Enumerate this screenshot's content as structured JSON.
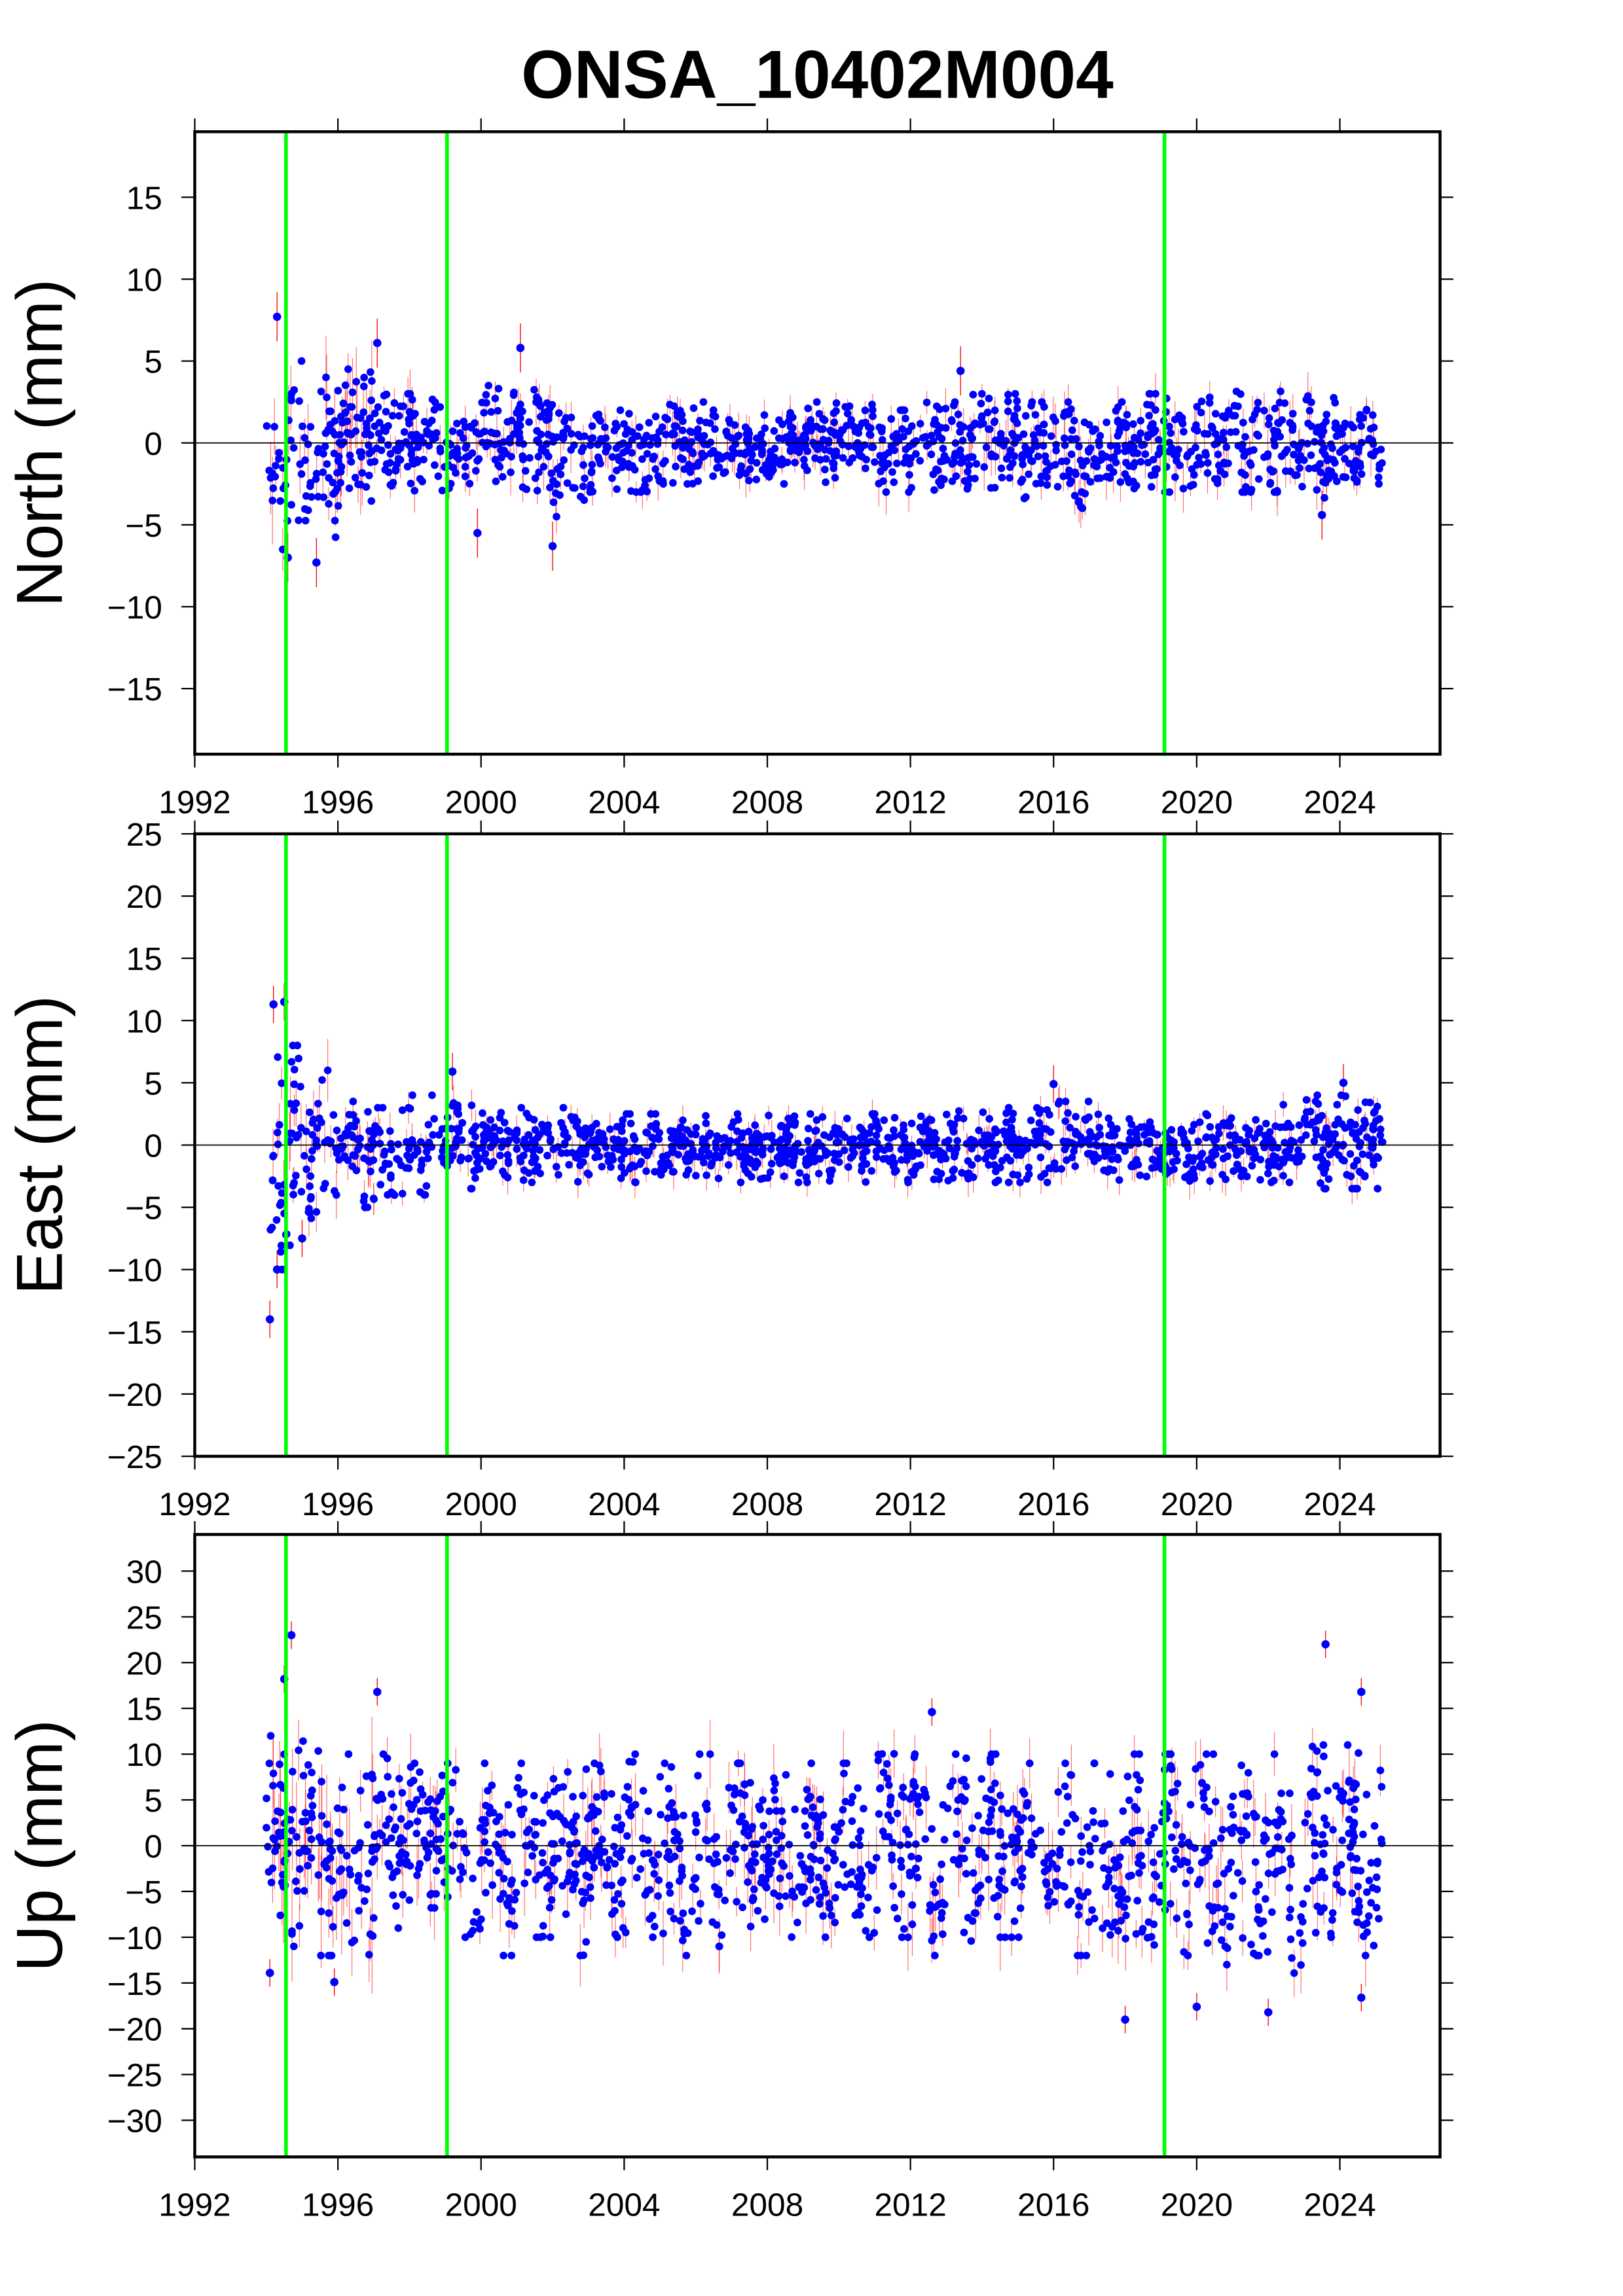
{
  "title": "ONSA_10402M004",
  "colors": {
    "points": "#0000ff",
    "error_bars": "#ff0000",
    "offsets": "#00ff00",
    "zero_line": "#000000"
  },
  "chart_data": [
    {
      "type": "scatter",
      "ylabel": "North (mm)",
      "xlim": [
        1992,
        2026.8
      ],
      "ylim": [
        -19,
        19
      ],
      "xticks": [
        1992,
        1996,
        2000,
        2004,
        2008,
        2012,
        2016,
        2020,
        2024
      ],
      "yticks": [
        -15,
        -10,
        -5,
        0,
        5,
        10,
        15
      ],
      "offset_lines_x": [
        1994.55,
        1999.05,
        2019.1
      ],
      "data_span": [
        1994.0,
        2025.2
      ],
      "yearly_envelope": [
        [
          1994,
          -6.5,
          5
        ],
        [
          1995,
          -6.5,
          4
        ],
        [
          1996,
          -4,
          4.5
        ],
        [
          1997,
          -3,
          3
        ],
        [
          1998,
          -3,
          3
        ],
        [
          1999,
          -3,
          2.5
        ],
        [
          2000,
          -2.5,
          3.5
        ],
        [
          2001,
          -3,
          3.5
        ],
        [
          2002,
          -4.5,
          2.5
        ],
        [
          2003,
          -3,
          2
        ],
        [
          2004,
          -3,
          2
        ],
        [
          2005,
          -2.5,
          2.5
        ],
        [
          2006,
          -2.5,
          2.5
        ],
        [
          2007,
          -2.5,
          2
        ],
        [
          2008,
          -2.5,
          2
        ],
        [
          2009,
          -2.5,
          2.5
        ],
        [
          2010,
          -2.5,
          2.5
        ],
        [
          2011,
          -3,
          2
        ],
        [
          2012,
          -3,
          2.5
        ],
        [
          2013,
          -4,
          3
        ],
        [
          2014,
          -3,
          3
        ],
        [
          2015,
          -3.5,
          2.5
        ],
        [
          2016,
          -4.5,
          2.5
        ],
        [
          2017,
          -3,
          2.5
        ],
        [
          2018,
          -3,
          3
        ],
        [
          2019,
          -3,
          3
        ],
        [
          2020,
          -3,
          3
        ],
        [
          2021,
          -3,
          3.5
        ],
        [
          2022,
          -3,
          3.5
        ],
        [
          2023,
          -3.5,
          3
        ],
        [
          2024,
          -3,
          2.5
        ],
        [
          2025,
          -2.5,
          2
        ]
      ],
      "outliers": [
        [
          1994.3,
          7.7
        ],
        [
          1997.1,
          6.1
        ],
        [
          2001.1,
          5.8
        ],
        [
          1994.6,
          -7.0
        ],
        [
          1995.4,
          -7.3
        ],
        [
          2002.0,
          -6.3
        ],
        [
          1999.9,
          -5.5
        ],
        [
          2023.5,
          -4.4
        ],
        [
          2013.4,
          4.4
        ]
      ]
    },
    {
      "type": "scatter",
      "ylabel": "East (mm)",
      "xlim": [
        1992,
        2026.8
      ],
      "ylim": [
        -25,
        25
      ],
      "xticks": [
        1992,
        1996,
        2000,
        2004,
        2008,
        2012,
        2016,
        2020,
        2024
      ],
      "yticks": [
        -25,
        -20,
        -15,
        -10,
        -5,
        0,
        5,
        10,
        15,
        20,
        25
      ],
      "offset_lines_x": [
        1994.55,
        1999.05,
        2019.1
      ],
      "data_span": [
        1994.0,
        2025.2
      ],
      "yearly_envelope": [
        [
          1994,
          -10,
          8
        ],
        [
          1995,
          -7,
          6
        ],
        [
          1996,
          -5,
          3.5
        ],
        [
          1997,
          -4.5,
          3
        ],
        [
          1998,
          -4,
          4
        ],
        [
          1999,
          -3.5,
          4
        ],
        [
          2000,
          -3,
          3
        ],
        [
          2001,
          -3,
          3
        ],
        [
          2002,
          -3,
          3
        ],
        [
          2003,
          -3,
          2.5
        ],
        [
          2004,
          -3,
          2.5
        ],
        [
          2005,
          -3,
          2.5
        ],
        [
          2006,
          -3,
          2.5
        ],
        [
          2007,
          -3,
          2.5
        ],
        [
          2008,
          -3,
          2.5
        ],
        [
          2009,
          -3,
          2.5
        ],
        [
          2010,
          -3,
          2.5
        ],
        [
          2011,
          -3,
          3
        ],
        [
          2012,
          -3,
          3
        ],
        [
          2013,
          -3.5,
          3
        ],
        [
          2014,
          -3,
          3
        ],
        [
          2015,
          -3,
          3
        ],
        [
          2016,
          -3,
          3.5
        ],
        [
          2017,
          -3,
          3
        ],
        [
          2018,
          -3,
          3
        ],
        [
          2019,
          -3.5,
          2.5
        ],
        [
          2020,
          -4,
          2.5
        ],
        [
          2021,
          -3.5,
          2.5
        ],
        [
          2022,
          -3,
          3.5
        ],
        [
          2023,
          -3.5,
          4
        ],
        [
          2024,
          -3.5,
          4
        ],
        [
          2025,
          -3.5,
          3.5
        ]
      ],
      "outliers": [
        [
          1994.2,
          11.3
        ],
        [
          1994.5,
          11.5
        ],
        [
          1994.1,
          -14.0
        ],
        [
          1994.3,
          -10.0
        ],
        [
          1995.0,
          -7.5
        ],
        [
          1999.2,
          5.9
        ],
        [
          2016.0,
          4.9
        ],
        [
          2024.1,
          5.0
        ]
      ]
    },
    {
      "type": "scatter",
      "ylabel": "Up (mm)",
      "xlim": [
        1992,
        2026.8
      ],
      "ylim": [
        -34,
        34
      ],
      "xticks": [
        1992,
        1996,
        2000,
        2004,
        2008,
        2012,
        2016,
        2020,
        2024
      ],
      "yticks": [
        -30,
        -25,
        -20,
        -15,
        -10,
        -5,
        0,
        5,
        10,
        15,
        20,
        25,
        30
      ],
      "offset_lines_x": [
        1994.55,
        1999.05,
        2019.1
      ],
      "data_span": [
        1994.0,
        2025.2
      ],
      "yearly_envelope": [
        [
          1994,
          -11,
          12
        ],
        [
          1995,
          -12,
          12
        ],
        [
          1996,
          -12,
          10
        ],
        [
          1997,
          -9,
          10
        ],
        [
          1998,
          -10,
          9
        ],
        [
          1999,
          -10,
          9
        ],
        [
          2000,
          -12,
          9
        ],
        [
          2001,
          -10,
          9
        ],
        [
          2002,
          -12,
          9
        ],
        [
          2003,
          -10,
          9
        ],
        [
          2004,
          -10,
          10
        ],
        [
          2005,
          -12,
          9
        ],
        [
          2006,
          -11,
          10
        ],
        [
          2007,
          -10,
          9
        ],
        [
          2008,
          -12,
          9
        ],
        [
          2009,
          -10,
          9
        ],
        [
          2010,
          -10,
          9
        ],
        [
          2011,
          -10,
          11
        ],
        [
          2012,
          -12,
          10
        ],
        [
          2013,
          -11,
          10
        ],
        [
          2014,
          -10,
          10
        ],
        [
          2015,
          -10,
          9
        ],
        [
          2016,
          -12,
          9
        ],
        [
          2017,
          -12,
          9
        ],
        [
          2018,
          -14,
          10
        ],
        [
          2019,
          -12,
          10
        ],
        [
          2020,
          -13,
          10
        ],
        [
          2021,
          -12,
          9
        ],
        [
          2022,
          -14,
          10
        ],
        [
          2023,
          -10,
          11
        ],
        [
          2024,
          -12,
          11
        ],
        [
          2025,
          -10,
          9
        ]
      ],
      "outliers": [
        [
          1994.7,
          23.0
        ],
        [
          1994.5,
          18.2
        ],
        [
          1997.1,
          16.8
        ],
        [
          2023.6,
          22.0
        ],
        [
          2024.6,
          16.8
        ],
        [
          1994.1,
          -13.9
        ],
        [
          1995.9,
          -14.9
        ],
        [
          2018.0,
          -19.0
        ],
        [
          2022.0,
          -18.2
        ],
        [
          2024.6,
          -16.6
        ],
        [
          2020.0,
          -17.6
        ],
        [
          2012.6,
          14.6
        ]
      ]
    }
  ]
}
